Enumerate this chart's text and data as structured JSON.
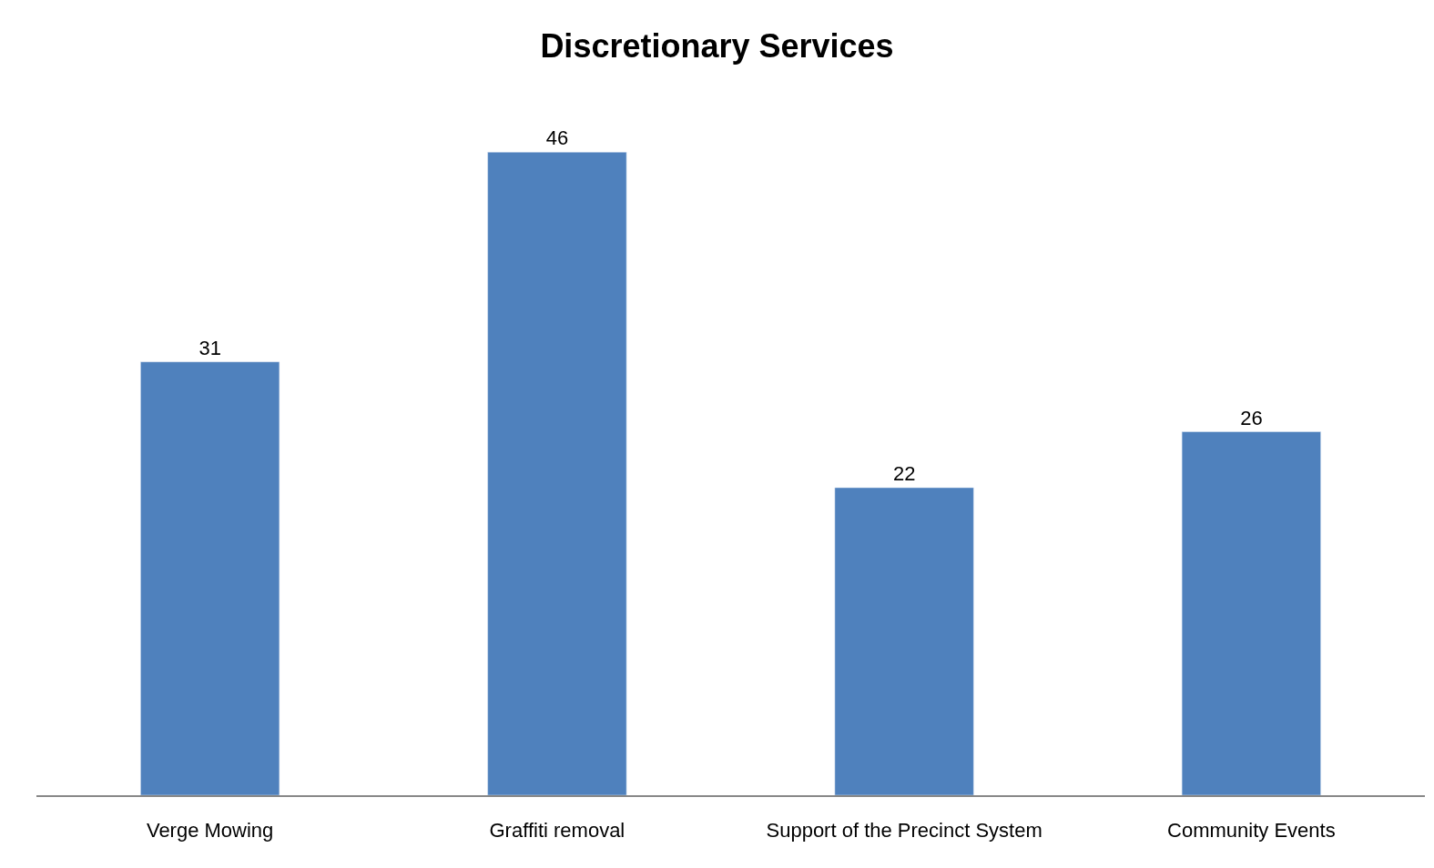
{
  "chart_data": {
    "type": "bar",
    "title": "Discretionary Services",
    "categories": [
      "Verge Mowing",
      "Graffiti removal",
      "Support of the Precinct System",
      "Community Events"
    ],
    "values": [
      31,
      46,
      22,
      26
    ],
    "color": "#4f81bd",
    "data_labels": true,
    "legend": false
  }
}
